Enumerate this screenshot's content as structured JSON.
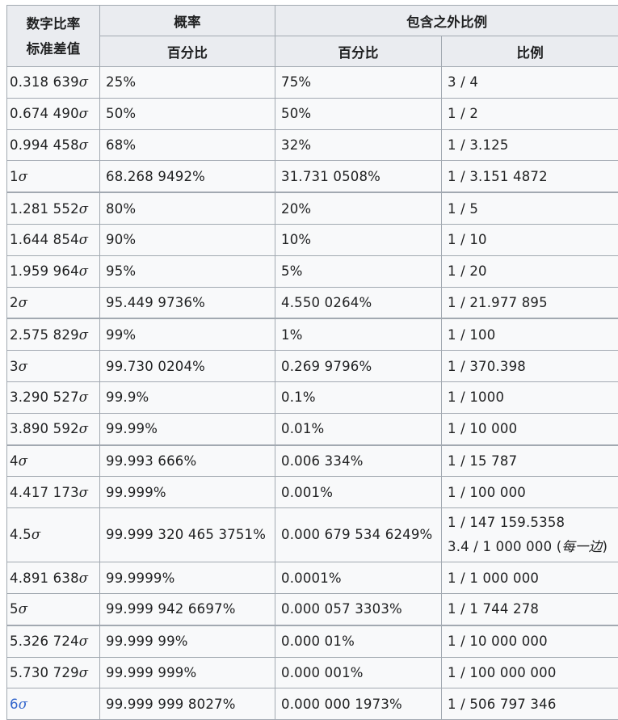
{
  "header": {
    "col0": [
      "数字比率",
      "标准差值"
    ],
    "prob": "概率",
    "outside": "包含之外比例",
    "sub_percent_1": "百分比",
    "sub_percent_2": "百分比",
    "sub_ratio": "比例"
  },
  "sigma_symbol": "σ",
  "rows": [
    {
      "z": "0.318 639",
      "p": "25%",
      "q": "75%",
      "r": "3 / 4"
    },
    {
      "z": "0.674 490",
      "p": "50%",
      "q": "50%",
      "r": "1 / 2"
    },
    {
      "z": "0.994 458",
      "p": "68%",
      "q": "32%",
      "r": "1 / 3.125"
    },
    {
      "z": "1",
      "p": "68.268 9492%",
      "q": "31.731 0508%",
      "r": "1 / 3.151 4872"
    },
    {
      "z": "1.281 552",
      "p": "80%",
      "q": "20%",
      "r": "1 / 5",
      "grp": true
    },
    {
      "z": "1.644 854",
      "p": "90%",
      "q": "10%",
      "r": "1 / 10"
    },
    {
      "z": "1.959 964",
      "p": "95%",
      "q": "5%",
      "r": "1 / 20"
    },
    {
      "z": "2",
      "p": "95.449 9736%",
      "q": "4.550 0264%",
      "r": "1 / 21.977 895"
    },
    {
      "z": "2.575 829",
      "p": "99%",
      "q": "1%",
      "r": "1 / 100",
      "grp": true
    },
    {
      "z": "3",
      "p": "99.730 0204%",
      "q": "0.269 9796%",
      "r": "1 / 370.398"
    },
    {
      "z": "3.290 527",
      "p": "99.9%",
      "q": "0.1%",
      "r": "1 / 1000"
    },
    {
      "z": "3.890 592",
      "p": "99.99%",
      "q": "0.01%",
      "r": "1 / 10 000"
    },
    {
      "z": "4",
      "p": "99.993 666%",
      "q": "0.006 334%",
      "r": "1 / 15 787",
      "grp": true
    },
    {
      "z": "4.417 173",
      "p": "99.999%",
      "q": "0.001%",
      "r": "1 / 100 000"
    },
    {
      "z": "4.5",
      "p": "99.999 320 465 3751%",
      "q": "0.000 679 534 6249%",
      "r": "1 / 147 159.5358",
      "r2": "3.4 / 1 000 000 (",
      "r2_note": "每一边",
      "r2_end": ")"
    },
    {
      "z": "4.891 638",
      "p": "99.9999%",
      "q": "0.0001%",
      "r": "1 / 1 000 000"
    },
    {
      "z": "5",
      "p": "99.999 942 6697%",
      "q": "0.000 057 3303%",
      "r": "1 / 1 744 278"
    },
    {
      "z": "5.326 724",
      "p": "99.999 99%",
      "q": "0.000 01%",
      "r": "1 / 10 000 000",
      "grp": true
    },
    {
      "z": "5.730 729",
      "p": "99.999 999%",
      "q": "0.000 001%",
      "r": "1 / 100 000 000"
    },
    {
      "z": "6",
      "p": "99.999 999 8027%",
      "q": "0.000 000 1973%",
      "r": "1 / 506 797 346",
      "link": true
    }
  ]
}
